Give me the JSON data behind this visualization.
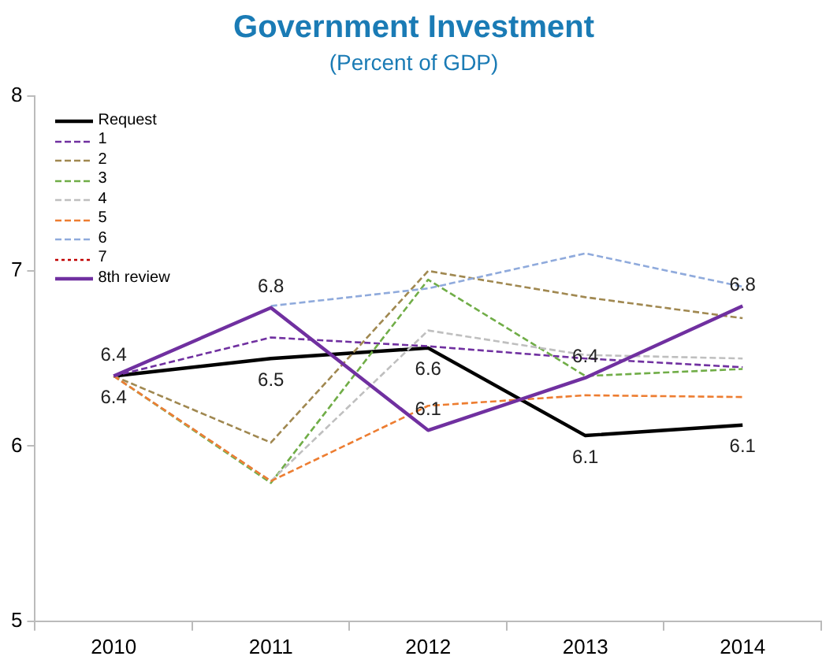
{
  "chart_data": {
    "type": "line",
    "title": "Government Investment",
    "subtitle": "(Percent of GDP)",
    "categories": [
      "2010",
      "2011",
      "2012",
      "2013",
      "2014"
    ],
    "series": [
      {
        "name": "Request",
        "color": "#000000",
        "line_style": "solid",
        "values": [
          6.4,
          6.5,
          6.56,
          6.06,
          6.12
        ],
        "value_labels": [
          "6.4",
          "6.5",
          "6.6",
          "6.1",
          "6.1"
        ]
      },
      {
        "name": "1",
        "color": "#7030a0",
        "line_style": "dashed",
        "values": [
          6.4,
          6.62,
          6.57,
          6.5,
          6.45
        ]
      },
      {
        "name": "2",
        "color": "#a08850",
        "line_style": "dashed",
        "values": [
          6.4,
          6.02,
          7.0,
          6.85,
          6.73
        ]
      },
      {
        "name": "3",
        "color": "#70ad47",
        "line_style": "dashed",
        "values": [
          6.4,
          5.79,
          6.95,
          6.4,
          6.44
        ]
      },
      {
        "name": "4",
        "color": "#bfbfbf",
        "line_style": "dashed",
        "values": [
          6.4,
          5.8,
          6.66,
          6.52,
          6.5
        ]
      },
      {
        "name": "5",
        "color": "#ed7d31",
        "line_style": "dashed",
        "values": [
          6.4,
          5.8,
          6.23,
          6.29,
          6.28
        ]
      },
      {
        "name": "6",
        "color": "#8faadc",
        "line_style": "dashed",
        "values": [
          null,
          6.8,
          6.9,
          7.1,
          6.91
        ]
      },
      {
        "name": "7",
        "color": "#c00000",
        "line_style": "dotted",
        "values": [
          null,
          null,
          null,
          null,
          null
        ]
      },
      {
        "name": "8th review",
        "color": "#7030a0",
        "line_style": "solid",
        "values": [
          6.4,
          6.79,
          6.09,
          6.39,
          6.8
        ],
        "value_labels": [
          "6.4",
          "6.8",
          "6.1",
          "6.4",
          "6.8"
        ]
      }
    ],
    "ylim": [
      5,
      8
    ],
    "yticks": [
      5,
      6,
      7,
      8
    ],
    "grid": false,
    "legend": "top left",
    "marker": "none"
  }
}
